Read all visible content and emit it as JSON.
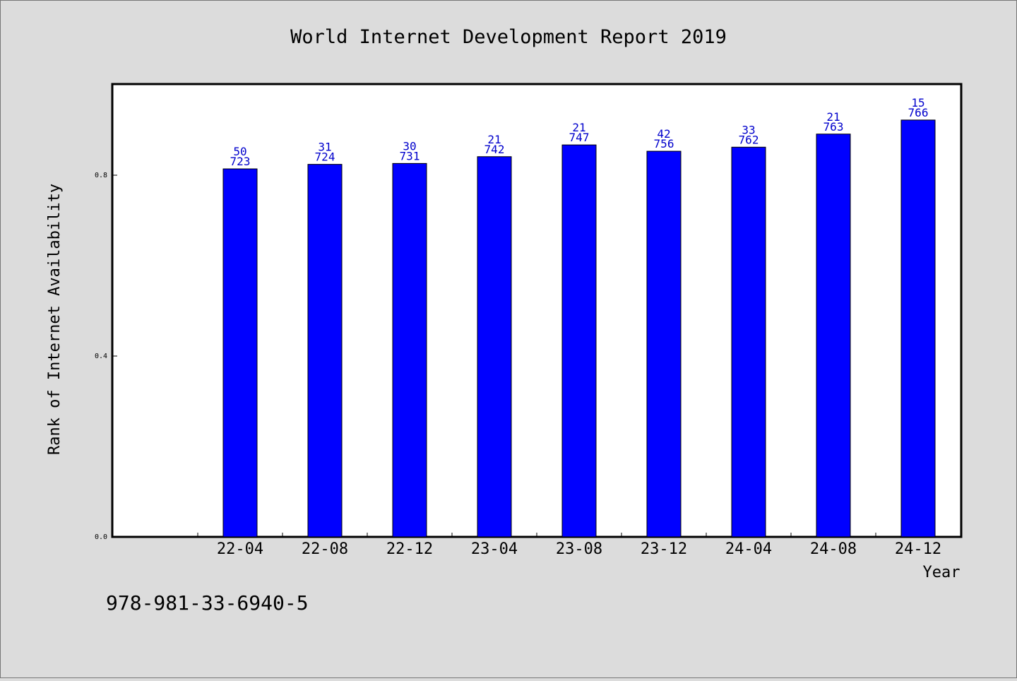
{
  "chart_data": {
    "type": "bar",
    "title": "World Internet Development Report 2019",
    "xlabel": "Year",
    "ylabel": "Rank of Internet Availability",
    "ylim": [
      0,
      1.0
    ],
    "yticks": [
      0.0,
      0.4,
      0.8
    ],
    "ytick_labels": [
      "0.0",
      "0.4",
      "0.8"
    ],
    "categories": [
      "22-04",
      "22-08",
      "22-12",
      "23-04",
      "23-08",
      "23-12",
      "24-04",
      "24-08",
      "24-12"
    ],
    "values": [
      0.814,
      0.824,
      0.826,
      0.841,
      0.867,
      0.853,
      0.862,
      0.891,
      0.922
    ],
    "label_top": [
      "50",
      "31",
      "30",
      "21",
      "21",
      "42",
      "33",
      "21",
      "15"
    ],
    "label_bottom": [
      "723",
      "724",
      "731",
      "742",
      "747",
      "756",
      "762",
      "763",
      "766"
    ],
    "grid": false,
    "colors": {
      "bar": "#0000ff",
      "label": "#0000cc",
      "background": "#dcdcdc",
      "plot": "#ffffff"
    }
  },
  "footer": {
    "isbn": "978-981-33-6940-5"
  }
}
